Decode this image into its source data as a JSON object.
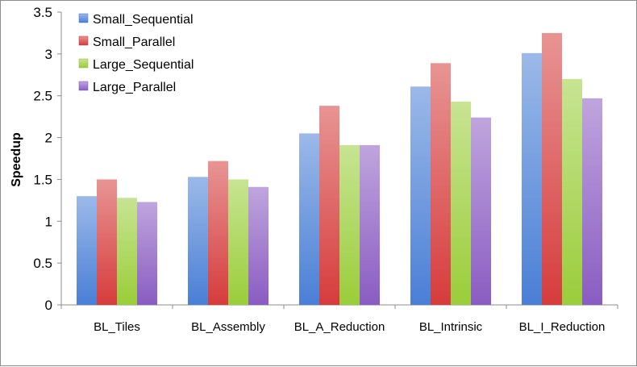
{
  "chart_data": {
    "type": "bar",
    "title": "",
    "xlabel": "",
    "ylabel": "Speedup",
    "ylim": [
      0,
      3.5
    ],
    "yticks": [
      "0",
      "0.5",
      "1",
      "1.5",
      "2",
      "2.5",
      "3",
      "3.5"
    ],
    "categories": [
      "BL_Tiles",
      "BL_Assembly",
      "BL_A_Reduction",
      "BL_Intrinsic",
      "BL_I_Reduction"
    ],
    "legend_position": "top-left",
    "grid": false,
    "series": [
      {
        "name": "Small_Sequential",
        "color": "#4a7fd6",
        "values": [
          1.3,
          1.53,
          2.05,
          2.61,
          3.01
        ]
      },
      {
        "name": "Small_Parallel",
        "color": "#d63c3c",
        "values": [
          1.5,
          1.72,
          2.38,
          2.89,
          3.25
        ]
      },
      {
        "name": "Large_Sequential",
        "color": "#9acd3a",
        "values": [
          1.28,
          1.5,
          1.91,
          2.43,
          2.7
        ]
      },
      {
        "name": "Large_Parallel",
        "color": "#8a5cc2",
        "values": [
          1.23,
          1.41,
          1.91,
          2.24,
          2.47
        ]
      }
    ]
  }
}
